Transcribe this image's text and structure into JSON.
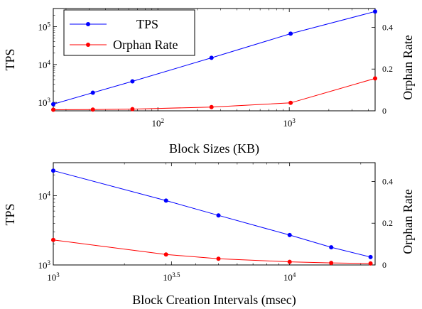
{
  "chart_data": [
    {
      "type": "line",
      "x_scale": "log",
      "y_left_scale": "log",
      "y_right_scale": "linear",
      "xlabel": "Block Sizes (KB)",
      "ylabel_left": "TPS",
      "ylabel_right": "Orphan Rate",
      "xlim": [
        16,
        4500
      ],
      "ylim_left": [
        600,
        300000
      ],
      "ylim_right": [
        0,
        0.49
      ],
      "x_ticks": [
        {
          "value": 100,
          "label": "10",
          "exp": "2"
        },
        {
          "value": 1000,
          "label": "10",
          "exp": "3"
        }
      ],
      "y_left_ticks": [
        {
          "value": 1000,
          "label": "10",
          "exp": "3"
        },
        {
          "value": 10000,
          "label": "10",
          "exp": "4"
        },
        {
          "value": 100000,
          "label": "10",
          "exp": "5"
        }
      ],
      "y_right_ticks": [
        {
          "value": 0,
          "label": "0"
        },
        {
          "value": 0.2,
          "label": "0.2"
        },
        {
          "value": 0.4,
          "label": "0.4"
        }
      ],
      "legend": {
        "position": "top-left",
        "entries": [
          "TPS",
          "Orphan Rate"
        ]
      },
      "series": [
        {
          "name": "TPS",
          "axis": "left",
          "color": "#0000ff",
          "x": [
            16,
            32,
            64,
            256,
            1024,
            4500
          ],
          "y": [
            900,
            1800,
            3600,
            15000,
            65000,
            250000
          ]
        },
        {
          "name": "Orphan Rate",
          "axis": "right",
          "color": "#ff0000",
          "x": [
            16,
            32,
            64,
            256,
            1024,
            4500
          ],
          "y": [
            0.005,
            0.006,
            0.008,
            0.018,
            0.038,
            0.155
          ]
        }
      ]
    },
    {
      "type": "line",
      "x_scale": "log",
      "y_left_scale": "log",
      "y_right_scale": "linear",
      "xlabel": "Block Creation Intervals (msec)",
      "ylabel_left": "TPS",
      "ylabel_right": "Orphan Rate",
      "xlim": [
        1000,
        23000
      ],
      "ylim_left": [
        1000,
        30000
      ],
      "ylim_right": [
        0,
        0.49
      ],
      "x_ticks": [
        {
          "value": 1000,
          "label": "10",
          "exp": "3"
        },
        {
          "value": 3162.28,
          "label": "10",
          "exp": "3.5"
        },
        {
          "value": 10000,
          "label": "10",
          "exp": "4"
        }
      ],
      "y_left_ticks": [
        {
          "value": 1000,
          "label": "10",
          "exp": "3"
        },
        {
          "value": 10000,
          "label": "10",
          "exp": "4"
        }
      ],
      "y_right_ticks": [
        {
          "value": 0,
          "label": "0"
        },
        {
          "value": 0.2,
          "label": "0.2"
        },
        {
          "value": 0.4,
          "label": "0.4"
        }
      ],
      "series": [
        {
          "name": "TPS",
          "axis": "left",
          "color": "#0000ff",
          "x": [
            1000,
            3000,
            5000,
            10000,
            15000,
            22000
          ],
          "y": [
            23000,
            8500,
            5200,
            2700,
            1800,
            1300
          ]
        },
        {
          "name": "Orphan Rate",
          "axis": "right",
          "color": "#ff0000",
          "x": [
            1000,
            3000,
            5000,
            10000,
            15000,
            22000
          ],
          "y": [
            0.12,
            0.05,
            0.03,
            0.015,
            0.01,
            0.007
          ]
        }
      ]
    }
  ]
}
